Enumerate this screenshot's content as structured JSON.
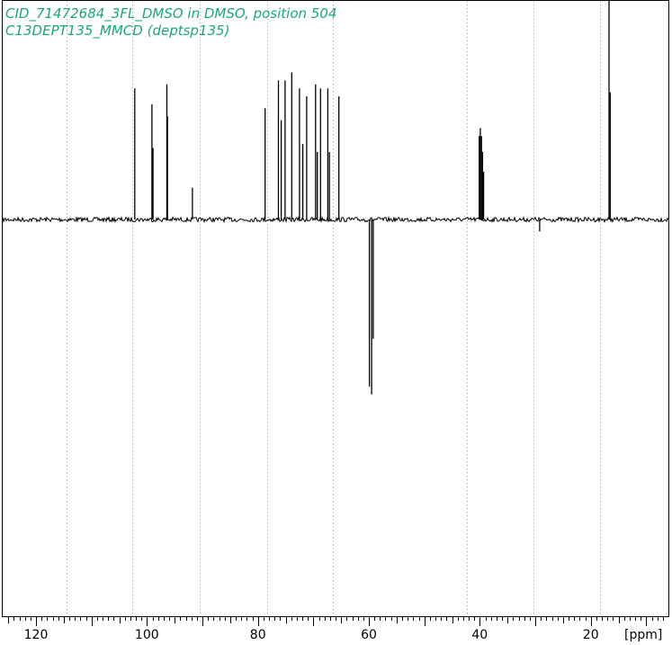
{
  "header": {
    "line1": "CID_71472684_3FL_DMSO in DMSO, position 504",
    "line2": "C13DEPT135_MMCD (deptsp135)"
  },
  "colors": {
    "title": "#1aa873",
    "spectrum": "#000000",
    "grid": "#9a9a9a"
  },
  "chart_data": {
    "type": "line",
    "title": "",
    "xlabel": "[ppm]",
    "ylabel": "",
    "x_reversed": true,
    "xlim": [
      126,
      6
    ],
    "ylim": [
      -1.0,
      0.55
    ],
    "tick_labels": [
      "120",
      "100",
      "80",
      "60",
      "40",
      "20"
    ],
    "tick_values": [
      120,
      100,
      80,
      60,
      40,
      20
    ],
    "grid_x": [
      114.5,
      102.6,
      90.5,
      78.4,
      66.5,
      42.4,
      30.4,
      18.4
    ],
    "grid": "vertical dotted",
    "peaks": [
      {
        "ppm": 102.2,
        "intensity": 0.33
      },
      {
        "ppm": 99.1,
        "intensity": 0.29
      },
      {
        "ppm": 98.9,
        "intensity": 0.18
      },
      {
        "ppm": 96.4,
        "intensity": 0.34
      },
      {
        "ppm": 96.3,
        "intensity": 0.26
      },
      {
        "ppm": 91.8,
        "intensity": 0.08
      },
      {
        "ppm": 78.7,
        "intensity": 0.28
      },
      {
        "ppm": 76.3,
        "intensity": 0.35
      },
      {
        "ppm": 75.8,
        "intensity": 0.25
      },
      {
        "ppm": 75.1,
        "intensity": 0.35
      },
      {
        "ppm": 73.9,
        "intensity": 0.37
      },
      {
        "ppm": 72.5,
        "intensity": 0.33
      },
      {
        "ppm": 71.9,
        "intensity": 0.19
      },
      {
        "ppm": 71.2,
        "intensity": 0.31
      },
      {
        "ppm": 69.6,
        "intensity": 0.34
      },
      {
        "ppm": 69.3,
        "intensity": 0.17
      },
      {
        "ppm": 68.7,
        "intensity": 0.33
      },
      {
        "ppm": 67.4,
        "intensity": 0.33
      },
      {
        "ppm": 67.1,
        "intensity": 0.17
      },
      {
        "ppm": 65.4,
        "intensity": 0.31
      },
      {
        "ppm": 59.9,
        "intensity": -0.42
      },
      {
        "ppm": 59.5,
        "intensity": -0.44
      },
      {
        "ppm": 59.2,
        "intensity": -0.3
      },
      {
        "ppm": 40.1,
        "intensity": 0.21
      },
      {
        "ppm": 39.9,
        "intensity": 0.23
      },
      {
        "ppm": 39.7,
        "intensity": 0.21
      },
      {
        "ppm": 39.5,
        "intensity": 0.17
      },
      {
        "ppm": 39.3,
        "intensity": 0.12
      },
      {
        "ppm": 29.2,
        "intensity": -0.03
      },
      {
        "ppm": 16.7,
        "intensity": 0.61
      },
      {
        "ppm": 16.5,
        "intensity": 0.32
      }
    ]
  }
}
